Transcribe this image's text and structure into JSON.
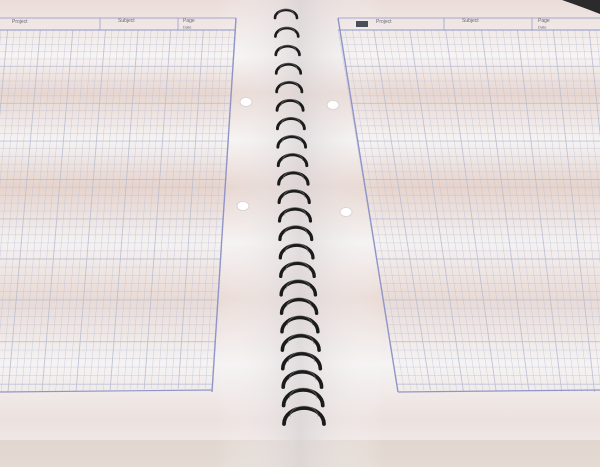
{
  "header": {
    "project_label": "Project",
    "subject_label": "Subject",
    "page_label": "Page",
    "date_label": "Date"
  },
  "colors": {
    "page": "#f4f2f2",
    "grid": "#b9bfd4",
    "margin": "#8f95c9",
    "coil": "#1b1b1b",
    "desk": "#7a6a55"
  },
  "icons": [
    "spiral-coil-icon",
    "punch-hole-icon"
  ]
}
